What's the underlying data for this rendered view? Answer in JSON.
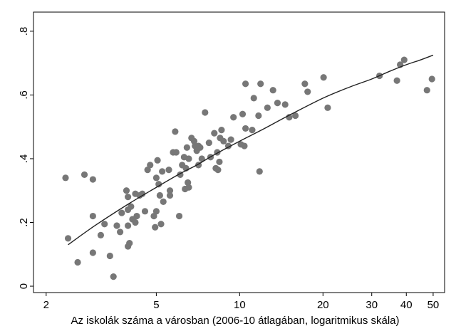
{
  "chart_data": {
    "type": "scatter",
    "xlabel": "Az iskolák száma a városban (2006-10 átlagában, logaritmikus skála)",
    "ylabel": "",
    "x_scale": "log",
    "xlim": [
      1.8,
      55
    ],
    "ylim": [
      -0.02,
      0.86
    ],
    "x_ticks": [
      2,
      5,
      10,
      20,
      30,
      40,
      50
    ],
    "x_tick_labels": [
      "2",
      "5",
      "10",
      "20",
      "30",
      "40",
      "50"
    ],
    "y_ticks": [
      0,
      0.2,
      0.4,
      0.6,
      0.8
    ],
    "y_tick_labels": [
      "0",
      ".2",
      ".4",
      ".6",
      ".8"
    ],
    "grid": false,
    "legend": "none",
    "colors": {
      "points": "#777777",
      "fit_line": "#222222",
      "frame": "#000000"
    },
    "series": [
      {
        "kind": "scatter",
        "x": [
          2.35,
          2.4,
          2.6,
          2.75,
          2.95,
          2.95,
          2.95,
          3.15,
          3.25,
          3.4,
          3.5,
          3.6,
          3.7,
          3.75,
          3.9,
          3.95,
          3.95,
          3.95,
          3.95,
          4.0,
          4.05,
          4.1,
          4.2,
          4.2,
          4.25,
          4.35,
          4.45,
          4.55,
          4.65,
          4.75,
          4.9,
          4.95,
          5.0,
          5.0,
          5.05,
          5.1,
          5.15,
          5.2,
          5.25,
          5.3,
          5.55,
          5.6,
          5.6,
          5.75,
          5.85,
          5.9,
          6.05,
          6.1,
          6.2,
          6.3,
          6.35,
          6.4,
          6.45,
          6.5,
          6.55,
          6.55,
          6.7,
          6.85,
          6.9,
          7.0,
          7.1,
          7.1,
          7.2,
          7.3,
          7.5,
          7.75,
          7.85,
          8.1,
          8.2,
          8.3,
          8.35,
          8.45,
          8.5,
          8.6,
          8.75,
          9.1,
          9.3,
          9.5,
          10.1,
          10.25,
          10.4,
          10.5,
          10.5,
          11.1,
          11.25,
          11.7,
          11.8,
          11.9,
          12.6,
          13.2,
          13.7,
          14.6,
          15.1,
          15.9,
          17.2,
          17.6,
          20.1,
          20.8,
          32,
          37,
          38,
          39.3,
          47.5,
          49.5
        ],
        "y": [
          0.34,
          0.15,
          0.075,
          0.35,
          0.335,
          0.22,
          0.105,
          0.16,
          0.195,
          0.095,
          0.03,
          0.19,
          0.17,
          0.23,
          0.3,
          0.28,
          0.24,
          0.19,
          0.125,
          0.135,
          0.25,
          0.21,
          0.2,
          0.29,
          0.22,
          0.285,
          0.29,
          0.235,
          0.365,
          0.38,
          0.22,
          0.185,
          0.34,
          0.235,
          0.395,
          0.32,
          0.285,
          0.195,
          0.36,
          0.265,
          0.365,
          0.3,
          0.285,
          0.42,
          0.485,
          0.42,
          0.22,
          0.35,
          0.38,
          0.405,
          0.305,
          0.37,
          0.435,
          0.325,
          0.4,
          0.31,
          0.465,
          0.455,
          0.44,
          0.425,
          0.44,
          0.38,
          0.435,
          0.4,
          0.545,
          0.45,
          0.405,
          0.48,
          0.37,
          0.42,
          0.365,
          0.39,
          0.465,
          0.49,
          0.455,
          0.44,
          0.46,
          0.53,
          0.445,
          0.54,
          0.44,
          0.635,
          0.495,
          0.49,
          0.59,
          0.535,
          0.36,
          0.635,
          0.56,
          0.615,
          0.575,
          0.57,
          0.53,
          0.535,
          0.635,
          0.61,
          0.655,
          0.56,
          0.66,
          0.645,
          0.695,
          0.71,
          0.615,
          0.65
        ]
      },
      {
        "kind": "fit_line",
        "x": [
          2.4,
          3,
          4,
          5,
          6,
          7,
          8,
          10,
          12,
          15,
          20,
          25,
          30,
          35,
          40,
          45,
          50
        ],
        "y": [
          0.13,
          0.19,
          0.26,
          0.31,
          0.35,
          0.38,
          0.41,
          0.455,
          0.49,
          0.535,
          0.59,
          0.625,
          0.65,
          0.675,
          0.695,
          0.71,
          0.725
        ]
      }
    ]
  }
}
